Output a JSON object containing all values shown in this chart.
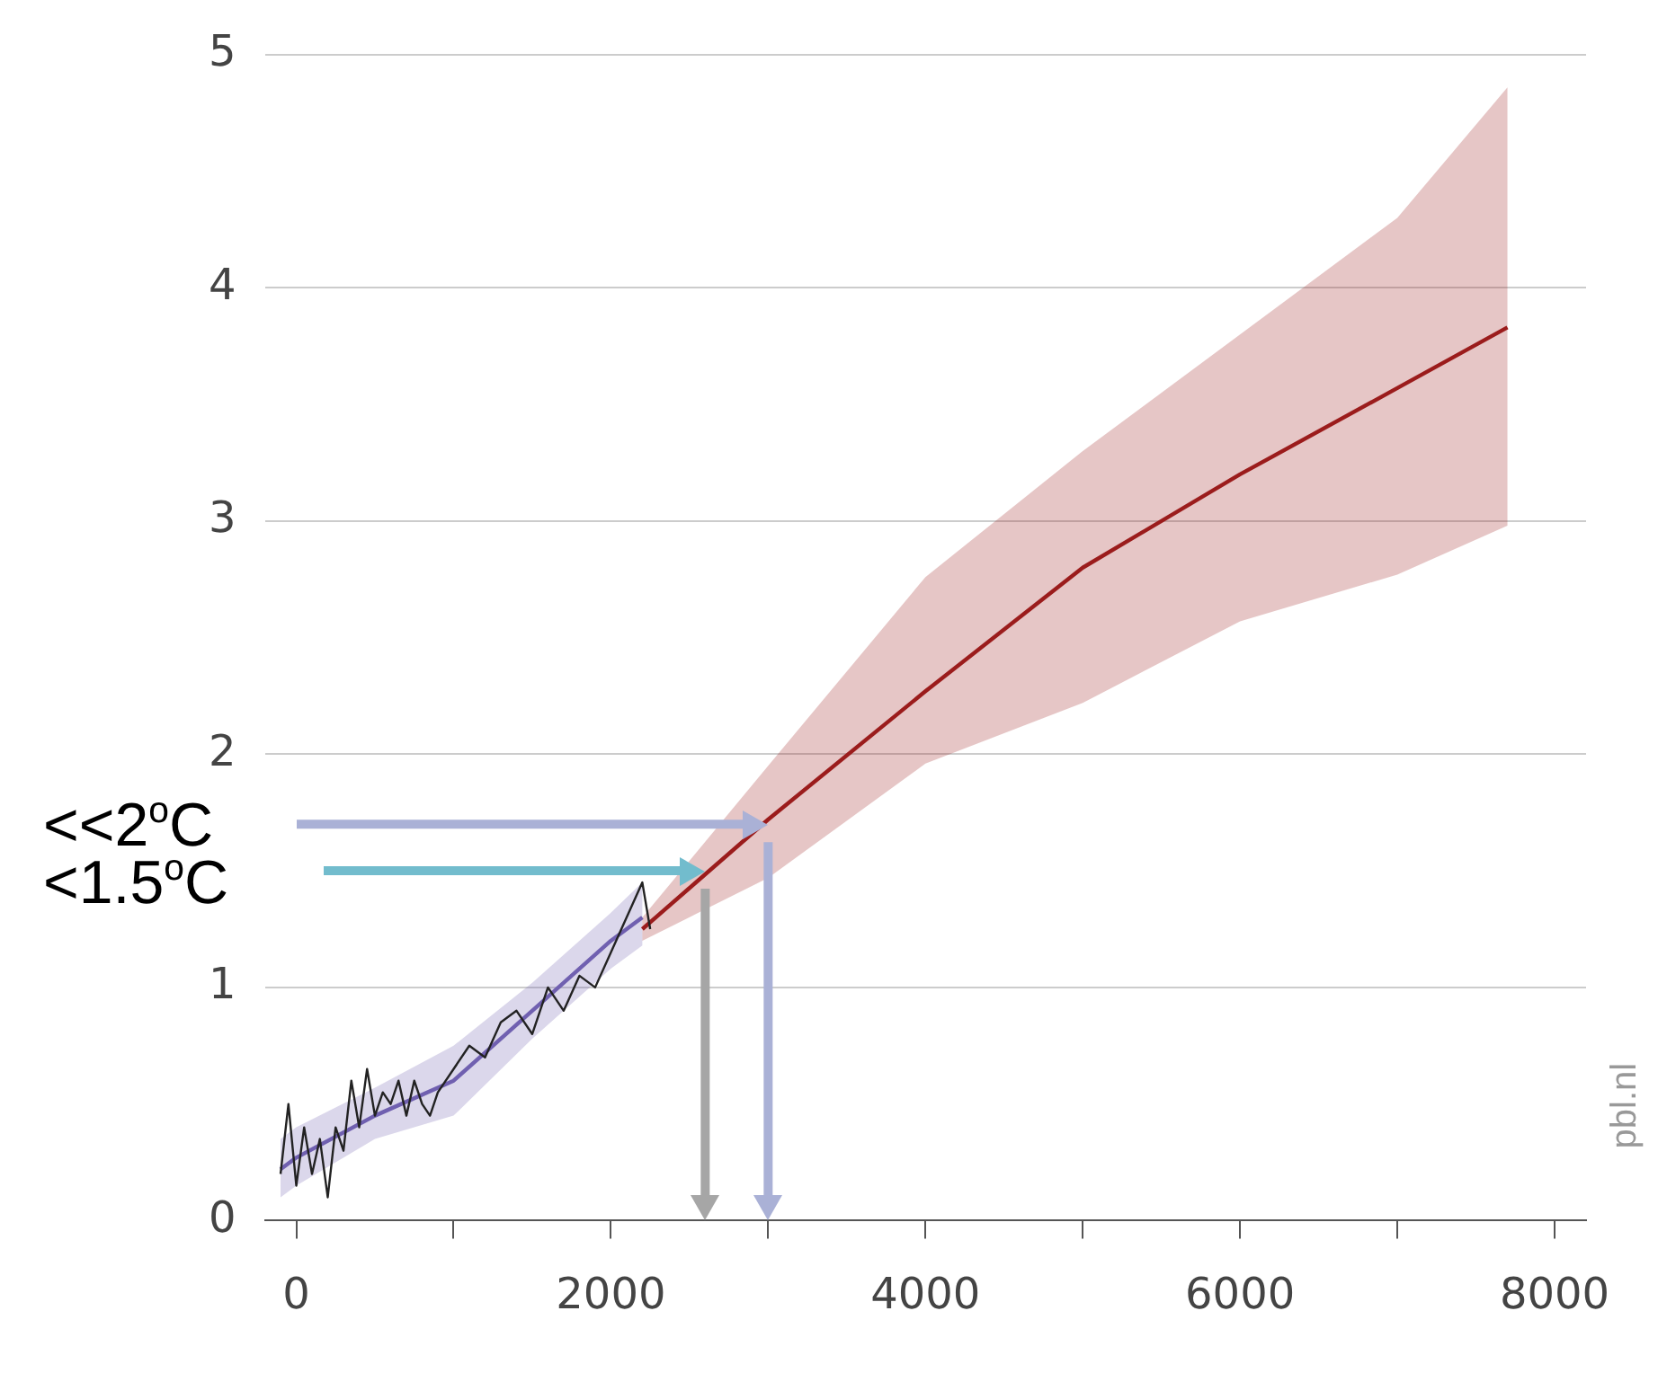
{
  "chart_data": {
    "type": "line",
    "xlim": [
      -200,
      8200
    ],
    "ylim": [
      0,
      5
    ],
    "xticks": [
      0,
      {
        "value": 1000,
        "label": null
      },
      2000,
      {
        "value": 3000,
        "label": null
      },
      4000,
      {
        "value": 5000,
        "label": null
      },
      6000,
      {
        "value": 7000,
        "label": null
      },
      8000
    ],
    "yticks": [
      0,
      1,
      2,
      3,
      4,
      5
    ],
    "grid": "y",
    "legend": false,
    "marker": "none",
    "line_style": "solid",
    "series": [
      {
        "color": "#222222",
        "x": [
          -100,
          -50,
          0,
          50,
          100,
          150,
          200,
          250,
          300,
          350,
          400,
          450,
          500,
          550,
          600,
          650,
          700,
          750,
          800,
          850,
          900,
          1000,
          1100,
          1200,
          1300,
          1400,
          1500,
          1600,
          1700,
          1800,
          1900,
          2000,
          2100,
          2200,
          2250
        ],
        "values": [
          0.2,
          0.5,
          0.15,
          0.4,
          0.2,
          0.35,
          0.1,
          0.4,
          0.3,
          0.6,
          0.4,
          0.65,
          0.45,
          0.55,
          0.5,
          0.6,
          0.45,
          0.6,
          0.5,
          0.45,
          0.55,
          0.65,
          0.75,
          0.7,
          0.85,
          0.9,
          0.8,
          1.0,
          0.9,
          1.05,
          1.0,
          1.15,
          1.3,
          1.45,
          1.25
        ]
      },
      {
        "color": "#7060b0",
        "x": [
          -100,
          0,
          500,
          1000,
          1500,
          2000,
          2200
        ],
        "values": [
          0.22,
          0.27,
          0.45,
          0.6,
          0.9,
          1.2,
          1.3
        ],
        "lower": [
          0.1,
          0.15,
          0.35,
          0.45,
          0.78,
          1.08,
          1.18
        ],
        "upper": [
          0.35,
          0.4,
          0.57,
          0.75,
          1.02,
          1.32,
          1.45
        ]
      },
      {
        "color": "#9b1c1c",
        "x": [
          2200,
          3000,
          4000,
          5000,
          6000,
          7000,
          7700
        ],
        "values": [
          1.25,
          1.72,
          2.27,
          2.8,
          3.2,
          3.57,
          3.83
        ],
        "lower": [
          1.2,
          1.47,
          1.96,
          2.22,
          2.57,
          2.77,
          2.98
        ],
        "upper": [
          1.3,
          1.95,
          2.76,
          3.3,
          3.8,
          4.3,
          4.86
        ]
      }
    ],
    "ref_lines": [
      {
        "axis": "y",
        "value": 1.7,
        "label": "<<2$^{o}$C",
        "color": "#aab1d6"
      },
      {
        "axis": "x",
        "value": 3000,
        "color": "#aab1d6"
      },
      {
        "axis": "y",
        "value": 1.5,
        "label": "<1.5$^{o}$C",
        "color": "#72bccd"
      },
      {
        "axis": "x",
        "value": 2600,
        "color": "#a6a6a6"
      }
    ],
    "annotations": [
      "pbl.nl"
    ]
  }
}
